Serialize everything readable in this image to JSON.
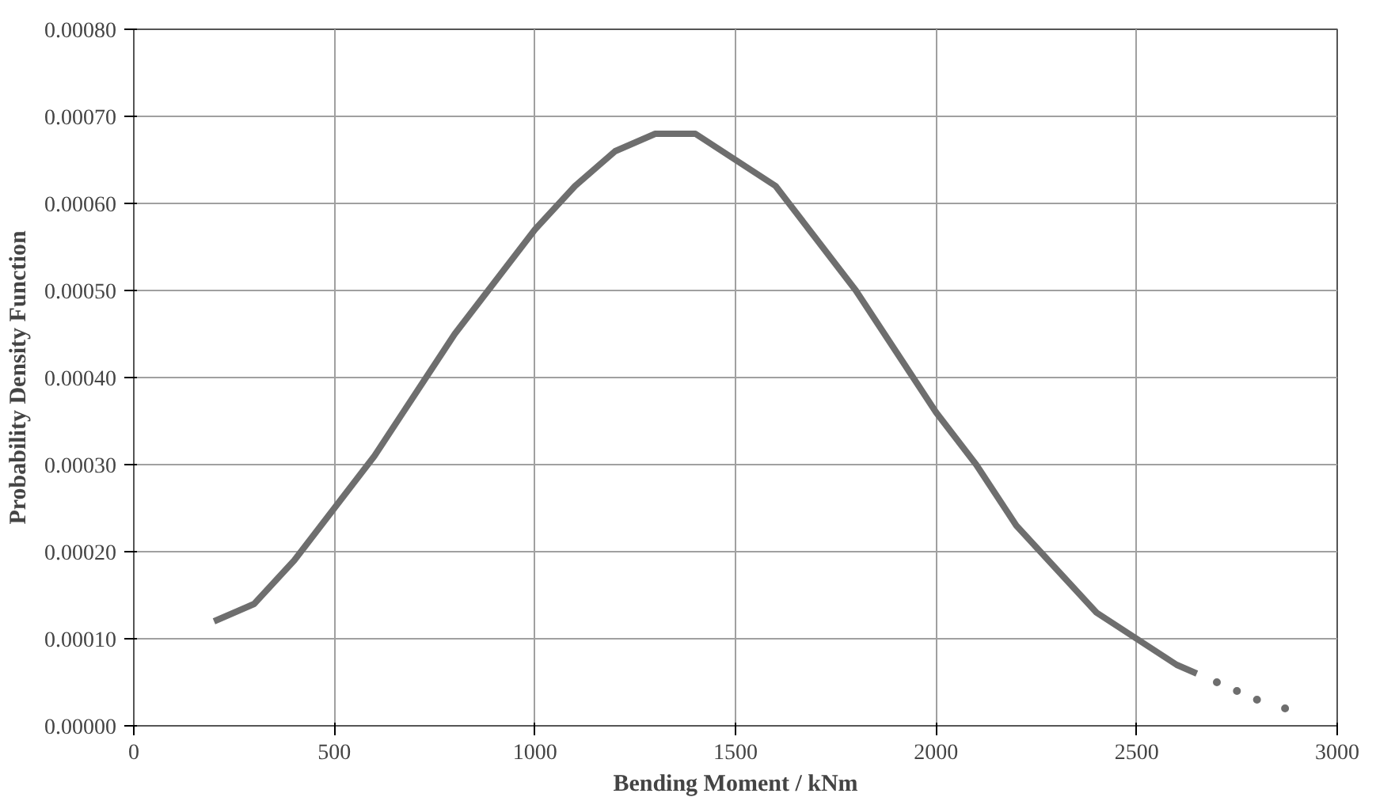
{
  "chart_data": {
    "type": "line",
    "xlabel": "Bending Moment / kNm",
    "ylabel": "Probability Density Function",
    "xlim": [
      0,
      3000
    ],
    "ylim": [
      0,
      0.0008
    ],
    "xticks": [
      0,
      500,
      1000,
      1500,
      2000,
      2500,
      3000
    ],
    "yticks": [
      {
        "value": 0,
        "label": "0.00000"
      },
      {
        "value": 0.0001,
        "label": "0.00010"
      },
      {
        "value": 0.0002,
        "label": "0.00020"
      },
      {
        "value": 0.0003,
        "label": "0.00030"
      },
      {
        "value": 0.0004,
        "label": "0.00040"
      },
      {
        "value": 0.0005,
        "label": "0.00050"
      },
      {
        "value": 0.0006,
        "label": "0.00060"
      },
      {
        "value": 0.0007,
        "label": "0.00070"
      },
      {
        "value": 0.0008,
        "label": "0.00080"
      }
    ],
    "grid": true,
    "series": [
      {
        "color": "#6e6e6e",
        "line_style": "solid",
        "x": [
          200,
          300,
          400,
          500,
          600,
          700,
          800,
          900,
          1000,
          1100,
          1200,
          1300,
          1340,
          1400,
          1500,
          1600,
          1700,
          1800,
          1900,
          2000,
          2100,
          2200,
          2300,
          2400,
          2500,
          2600,
          2650
        ],
        "values": [
          0.00012,
          0.00014,
          0.00019,
          0.00025,
          0.00031,
          0.00038,
          0.00045,
          0.00051,
          0.00057,
          0.00062,
          0.00066,
          0.00068,
          0.00068,
          0.00068,
          0.00065,
          0.00062,
          0.00056,
          0.0005,
          0.00043,
          0.00036,
          0.0003,
          0.00023,
          0.00018,
          0.00013,
          0.0001,
          7e-05,
          6e-05
        ]
      },
      {
        "type": "scatter",
        "color": "#6e6e6e",
        "marker": "circle",
        "x": [
          2700,
          2750,
          2800,
          2870
        ],
        "values": [
          5e-05,
          4e-05,
          3e-05,
          2e-05
        ]
      }
    ]
  }
}
